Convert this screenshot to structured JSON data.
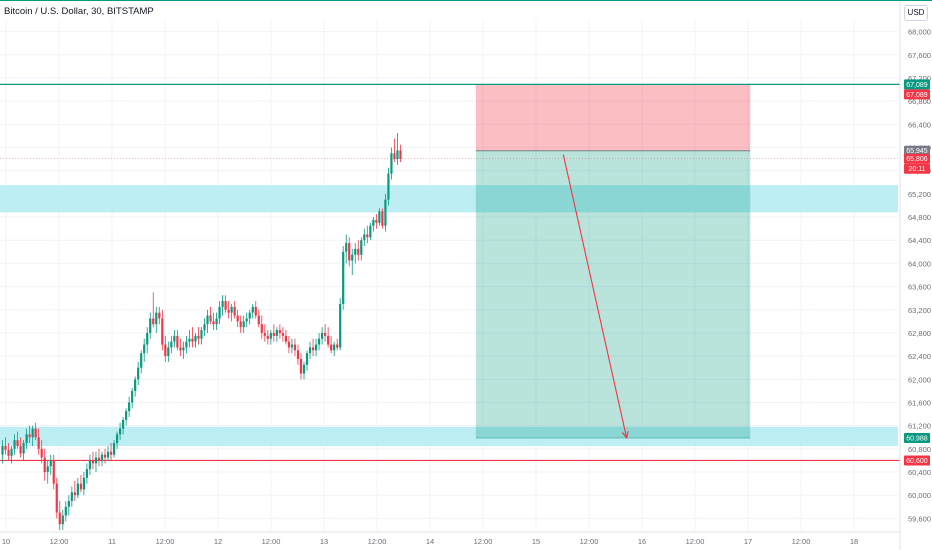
{
  "chart_data": {
    "type": "candlestick",
    "title": "Bitcoin / U.S. Dollar, 30, BITSTAMP",
    "currency": "USD",
    "y_ticks": [
      59600,
      60000,
      60400,
      60800,
      61200,
      61600,
      62000,
      62400,
      62800,
      63200,
      63600,
      64000,
      64400,
      64800,
      65200,
      65600,
      66000,
      66400,
      66800,
      67200,
      67600,
      68000
    ],
    "y_tick_labels": [
      "59,600",
      "60,000",
      "60,400",
      "60,800",
      "61,200",
      "61,600",
      "62,000",
      "62,400",
      "62,800",
      "63,200",
      "63,600",
      "64,000",
      "64,400",
      "64,800",
      "65,200",
      "65,600",
      "66,000",
      "66,400",
      "66,800",
      "67,200",
      "67,600",
      "68,000"
    ],
    "ylim": [
      59400,
      68200
    ],
    "x_tick_labels": [
      "10",
      "12:00",
      "11",
      "12:00",
      "12",
      "12:00",
      "13",
      "12:00",
      "14",
      "12:00",
      "15",
      "12:00",
      "16",
      "12:00",
      "17",
      "12:00",
      "18"
    ],
    "grid": true,
    "price_badges": [
      {
        "label": "67,089",
        "value": 67089,
        "color": "#089981"
      },
      {
        "label": "67,089",
        "value": 67089,
        "color": "#f23645"
      },
      {
        "label": "65,945",
        "value": 65945,
        "color": "#787b86"
      },
      {
        "label": "65,806",
        "value": 65806,
        "color": "#f23645"
      },
      {
        "label": "20:11",
        "value": 65806,
        "color": "#f23645"
      },
      {
        "label": "60,988",
        "value": 60988,
        "color": "#089981"
      },
      {
        "label": "60,600",
        "value": 60600,
        "color": "#f23645"
      }
    ],
    "horizontal_lines": [
      {
        "value": 67089,
        "color": "#089981"
      },
      {
        "value": 60600,
        "color": "#f23645"
      }
    ],
    "zones": [
      {
        "from": 64880,
        "to": 65350,
        "color": "#b2ebf2"
      },
      {
        "from": 60850,
        "to": 61180,
        "color": "#b2ebf2"
      }
    ],
    "short_position": {
      "entry": 65945,
      "stop": 67089,
      "target": 60988,
      "start_index": 157,
      "end_index": 248
    },
    "arrow": {
      "from_index": 186,
      "from_value": 65880,
      "to_index": 207,
      "to_value": 60990,
      "color": "#f23645"
    },
    "candles": [
      {
        "o": 60700,
        "h": 60950,
        "l": 60550,
        "c": 60850
      },
      {
        "o": 60850,
        "h": 61000,
        "l": 60700,
        "c": 60780
      },
      {
        "o": 60780,
        "h": 60900,
        "l": 60600,
        "c": 60680
      },
      {
        "o": 60680,
        "h": 60850,
        "l": 60550,
        "c": 60800
      },
      {
        "o": 60800,
        "h": 61050,
        "l": 60700,
        "c": 60950
      },
      {
        "o": 60950,
        "h": 61100,
        "l": 60800,
        "c": 60850
      },
      {
        "o": 60850,
        "h": 61000,
        "l": 60650,
        "c": 60720
      },
      {
        "o": 60720,
        "h": 60950,
        "l": 60600,
        "c": 60900
      },
      {
        "o": 60900,
        "h": 61150,
        "l": 60800,
        "c": 61050
      },
      {
        "o": 61050,
        "h": 61200,
        "l": 60900,
        "c": 61000
      },
      {
        "o": 61000,
        "h": 61200,
        "l": 60850,
        "c": 61150
      },
      {
        "o": 61150,
        "h": 61250,
        "l": 60950,
        "c": 61000
      },
      {
        "o": 61000,
        "h": 61150,
        "l": 60700,
        "c": 60800
      },
      {
        "o": 60800,
        "h": 60950,
        "l": 60550,
        "c": 60650
      },
      {
        "o": 60650,
        "h": 60800,
        "l": 60250,
        "c": 60400
      },
      {
        "o": 60400,
        "h": 60600,
        "l": 60200,
        "c": 60500
      },
      {
        "o": 60500,
        "h": 60700,
        "l": 60350,
        "c": 60600
      },
      {
        "o": 60600,
        "h": 60700,
        "l": 60100,
        "c": 60200
      },
      {
        "o": 60200,
        "h": 60300,
        "l": 59600,
        "c": 59700
      },
      {
        "o": 59700,
        "h": 59900,
        "l": 59400,
        "c": 59500
      },
      {
        "o": 59500,
        "h": 59750,
        "l": 59400,
        "c": 59650
      },
      {
        "o": 59650,
        "h": 59900,
        "l": 59550,
        "c": 59800
      },
      {
        "o": 59800,
        "h": 60000,
        "l": 59650,
        "c": 59900
      },
      {
        "o": 59900,
        "h": 60150,
        "l": 59800,
        "c": 60050
      },
      {
        "o": 60050,
        "h": 60250,
        "l": 59900,
        "c": 60000
      },
      {
        "o": 60000,
        "h": 60300,
        "l": 59950,
        "c": 60200
      },
      {
        "o": 60200,
        "h": 60350,
        "l": 60050,
        "c": 60100
      },
      {
        "o": 60100,
        "h": 60400,
        "l": 60000,
        "c": 60300
      },
      {
        "o": 60300,
        "h": 60550,
        "l": 60200,
        "c": 60450
      },
      {
        "o": 60450,
        "h": 60700,
        "l": 60350,
        "c": 60600
      },
      {
        "o": 60600,
        "h": 60750,
        "l": 60450,
        "c": 60550
      },
      {
        "o": 60550,
        "h": 60750,
        "l": 60400,
        "c": 60650
      },
      {
        "o": 60650,
        "h": 60800,
        "l": 60500,
        "c": 60600
      },
      {
        "o": 60600,
        "h": 60750,
        "l": 60500,
        "c": 60700
      },
      {
        "o": 60700,
        "h": 60800,
        "l": 60550,
        "c": 60650
      },
      {
        "o": 60650,
        "h": 60850,
        "l": 60600,
        "c": 60750
      },
      {
        "o": 60750,
        "h": 60900,
        "l": 60600,
        "c": 60700
      },
      {
        "o": 60700,
        "h": 60950,
        "l": 60650,
        "c": 60900
      },
      {
        "o": 60900,
        "h": 61100,
        "l": 60800,
        "c": 61050
      },
      {
        "o": 61050,
        "h": 61250,
        "l": 60950,
        "c": 61150
      },
      {
        "o": 61150,
        "h": 61350,
        "l": 61050,
        "c": 61300
      },
      {
        "o": 61300,
        "h": 61500,
        "l": 61200,
        "c": 61450
      },
      {
        "o": 61450,
        "h": 61700,
        "l": 61350,
        "c": 61600
      },
      {
        "o": 61600,
        "h": 61850,
        "l": 61500,
        "c": 61800
      },
      {
        "o": 61800,
        "h": 62050,
        "l": 61700,
        "c": 62000
      },
      {
        "o": 62000,
        "h": 62300,
        "l": 61900,
        "c": 62200
      },
      {
        "o": 62200,
        "h": 62500,
        "l": 62100,
        "c": 62450
      },
      {
        "o": 62450,
        "h": 62700,
        "l": 62300,
        "c": 62600
      },
      {
        "o": 62600,
        "h": 62900,
        "l": 62450,
        "c": 62800
      },
      {
        "o": 62800,
        "h": 63150,
        "l": 62700,
        "c": 63050
      },
      {
        "o": 63050,
        "h": 63500,
        "l": 62900,
        "c": 62950
      },
      {
        "o": 62950,
        "h": 63250,
        "l": 62800,
        "c": 63150
      },
      {
        "o": 63150,
        "h": 63250,
        "l": 62950,
        "c": 63050
      },
      {
        "o": 63050,
        "h": 63200,
        "l": 62500,
        "c": 62600
      },
      {
        "o": 62600,
        "h": 62750,
        "l": 62300,
        "c": 62400
      },
      {
        "o": 62400,
        "h": 62650,
        "l": 62300,
        "c": 62550
      },
      {
        "o": 62550,
        "h": 62750,
        "l": 62450,
        "c": 62650
      },
      {
        "o": 62650,
        "h": 62850,
        "l": 62550,
        "c": 62750
      },
      {
        "o": 62750,
        "h": 62850,
        "l": 62500,
        "c": 62550
      },
      {
        "o": 62550,
        "h": 62700,
        "l": 62400,
        "c": 62500
      },
      {
        "o": 62500,
        "h": 62650,
        "l": 62350,
        "c": 62550
      },
      {
        "o": 62550,
        "h": 62750,
        "l": 62450,
        "c": 62650
      },
      {
        "o": 62650,
        "h": 62850,
        "l": 62550,
        "c": 62700
      },
      {
        "o": 62700,
        "h": 62900,
        "l": 62550,
        "c": 62650
      },
      {
        "o": 62650,
        "h": 62800,
        "l": 62550,
        "c": 62750
      },
      {
        "o": 62750,
        "h": 62900,
        "l": 62600,
        "c": 62700
      },
      {
        "o": 62700,
        "h": 62900,
        "l": 62600,
        "c": 62850
      },
      {
        "o": 62850,
        "h": 63050,
        "l": 62750,
        "c": 62950
      },
      {
        "o": 62950,
        "h": 63200,
        "l": 62800,
        "c": 63100
      },
      {
        "o": 63100,
        "h": 63250,
        "l": 62950,
        "c": 63000
      },
      {
        "o": 63000,
        "h": 63150,
        "l": 62850,
        "c": 62950
      },
      {
        "o": 62950,
        "h": 63150,
        "l": 62850,
        "c": 63050
      },
      {
        "o": 63050,
        "h": 63350,
        "l": 62950,
        "c": 63250
      },
      {
        "o": 63250,
        "h": 63450,
        "l": 63100,
        "c": 63350
      },
      {
        "o": 63350,
        "h": 63450,
        "l": 63150,
        "c": 63200
      },
      {
        "o": 63200,
        "h": 63350,
        "l": 63050,
        "c": 63150
      },
      {
        "o": 63150,
        "h": 63300,
        "l": 63000,
        "c": 63250
      },
      {
        "o": 63250,
        "h": 63350,
        "l": 63050,
        "c": 63100
      },
      {
        "o": 63100,
        "h": 63200,
        "l": 62900,
        "c": 63000
      },
      {
        "o": 63000,
        "h": 63100,
        "l": 62800,
        "c": 62900
      },
      {
        "o": 62900,
        "h": 63100,
        "l": 62800,
        "c": 63000
      },
      {
        "o": 63000,
        "h": 63150,
        "l": 62900,
        "c": 63050
      },
      {
        "o": 63050,
        "h": 63200,
        "l": 62950,
        "c": 63150
      },
      {
        "o": 63150,
        "h": 63300,
        "l": 63050,
        "c": 63250
      },
      {
        "o": 63250,
        "h": 63350,
        "l": 63050,
        "c": 63100
      },
      {
        "o": 63100,
        "h": 63200,
        "l": 62900,
        "c": 62950
      },
      {
        "o": 62950,
        "h": 63100,
        "l": 62700,
        "c": 62800
      },
      {
        "o": 62800,
        "h": 62950,
        "l": 62650,
        "c": 62750
      },
      {
        "o": 62750,
        "h": 62850,
        "l": 62600,
        "c": 62700
      },
      {
        "o": 62700,
        "h": 62850,
        "l": 62600,
        "c": 62800
      },
      {
        "o": 62800,
        "h": 62950,
        "l": 62650,
        "c": 62750
      },
      {
        "o": 62750,
        "h": 62900,
        "l": 62650,
        "c": 62850
      },
      {
        "o": 62850,
        "h": 62950,
        "l": 62700,
        "c": 62800
      },
      {
        "o": 62800,
        "h": 62900,
        "l": 62650,
        "c": 62750
      },
      {
        "o": 62750,
        "h": 62850,
        "l": 62600,
        "c": 62650
      },
      {
        "o": 62650,
        "h": 62750,
        "l": 62450,
        "c": 62550
      },
      {
        "o": 62550,
        "h": 62700,
        "l": 62450,
        "c": 62600
      },
      {
        "o": 62600,
        "h": 62700,
        "l": 62400,
        "c": 62500
      },
      {
        "o": 62500,
        "h": 62600,
        "l": 62250,
        "c": 62350
      },
      {
        "o": 62350,
        "h": 62450,
        "l": 62000,
        "c": 62100
      },
      {
        "o": 62100,
        "h": 62300,
        "l": 62000,
        "c": 62250
      },
      {
        "o": 62250,
        "h": 62500,
        "l": 62150,
        "c": 62450
      },
      {
        "o": 62450,
        "h": 62650,
        "l": 62350,
        "c": 62550
      },
      {
        "o": 62550,
        "h": 62700,
        "l": 62400,
        "c": 62500
      },
      {
        "o": 62500,
        "h": 62700,
        "l": 62400,
        "c": 62600
      },
      {
        "o": 62600,
        "h": 62800,
        "l": 62500,
        "c": 62700
      },
      {
        "o": 62700,
        "h": 62900,
        "l": 62600,
        "c": 62800
      },
      {
        "o": 62800,
        "h": 62950,
        "l": 62650,
        "c": 62750
      },
      {
        "o": 62750,
        "h": 62900,
        "l": 62550,
        "c": 62600
      },
      {
        "o": 62600,
        "h": 62750,
        "l": 62450,
        "c": 62500
      },
      {
        "o": 62500,
        "h": 62650,
        "l": 62400,
        "c": 62600
      },
      {
        "o": 62600,
        "h": 62700,
        "l": 62500,
        "c": 62550
      },
      {
        "o": 62550,
        "h": 63400,
        "l": 62500,
        "c": 63300
      },
      {
        "o": 63300,
        "h": 64300,
        "l": 63200,
        "c": 64200
      },
      {
        "o": 64200,
        "h": 64500,
        "l": 64000,
        "c": 64350
      },
      {
        "o": 64350,
        "h": 64450,
        "l": 63950,
        "c": 64050
      },
      {
        "o": 64050,
        "h": 64250,
        "l": 63800,
        "c": 64150
      },
      {
        "o": 64150,
        "h": 64350,
        "l": 64000,
        "c": 64250
      },
      {
        "o": 64250,
        "h": 64400,
        "l": 64050,
        "c": 64150
      },
      {
        "o": 64150,
        "h": 64450,
        "l": 64050,
        "c": 64400
      },
      {
        "o": 64400,
        "h": 64600,
        "l": 64300,
        "c": 64500
      },
      {
        "o": 64500,
        "h": 64650,
        "l": 64350,
        "c": 64450
      },
      {
        "o": 64450,
        "h": 64700,
        "l": 64400,
        "c": 64650
      },
      {
        "o": 64650,
        "h": 64800,
        "l": 64550,
        "c": 64750
      },
      {
        "o": 64750,
        "h": 64850,
        "l": 64600,
        "c": 64700
      },
      {
        "o": 64700,
        "h": 64950,
        "l": 64650,
        "c": 64900
      },
      {
        "o": 64900,
        "h": 64950,
        "l": 64600,
        "c": 64650
      },
      {
        "o": 64650,
        "h": 65200,
        "l": 64550,
        "c": 65100
      },
      {
        "o": 65100,
        "h": 65650,
        "l": 65000,
        "c": 65550
      },
      {
        "o": 65550,
        "h": 66000,
        "l": 65450,
        "c": 65900
      },
      {
        "o": 65900,
        "h": 66150,
        "l": 65750,
        "c": 65800
      },
      {
        "o": 65800,
        "h": 66250,
        "l": 65700,
        "c": 65950
      },
      {
        "o": 65950,
        "h": 66050,
        "l": 65750,
        "c": 65806
      }
    ]
  }
}
